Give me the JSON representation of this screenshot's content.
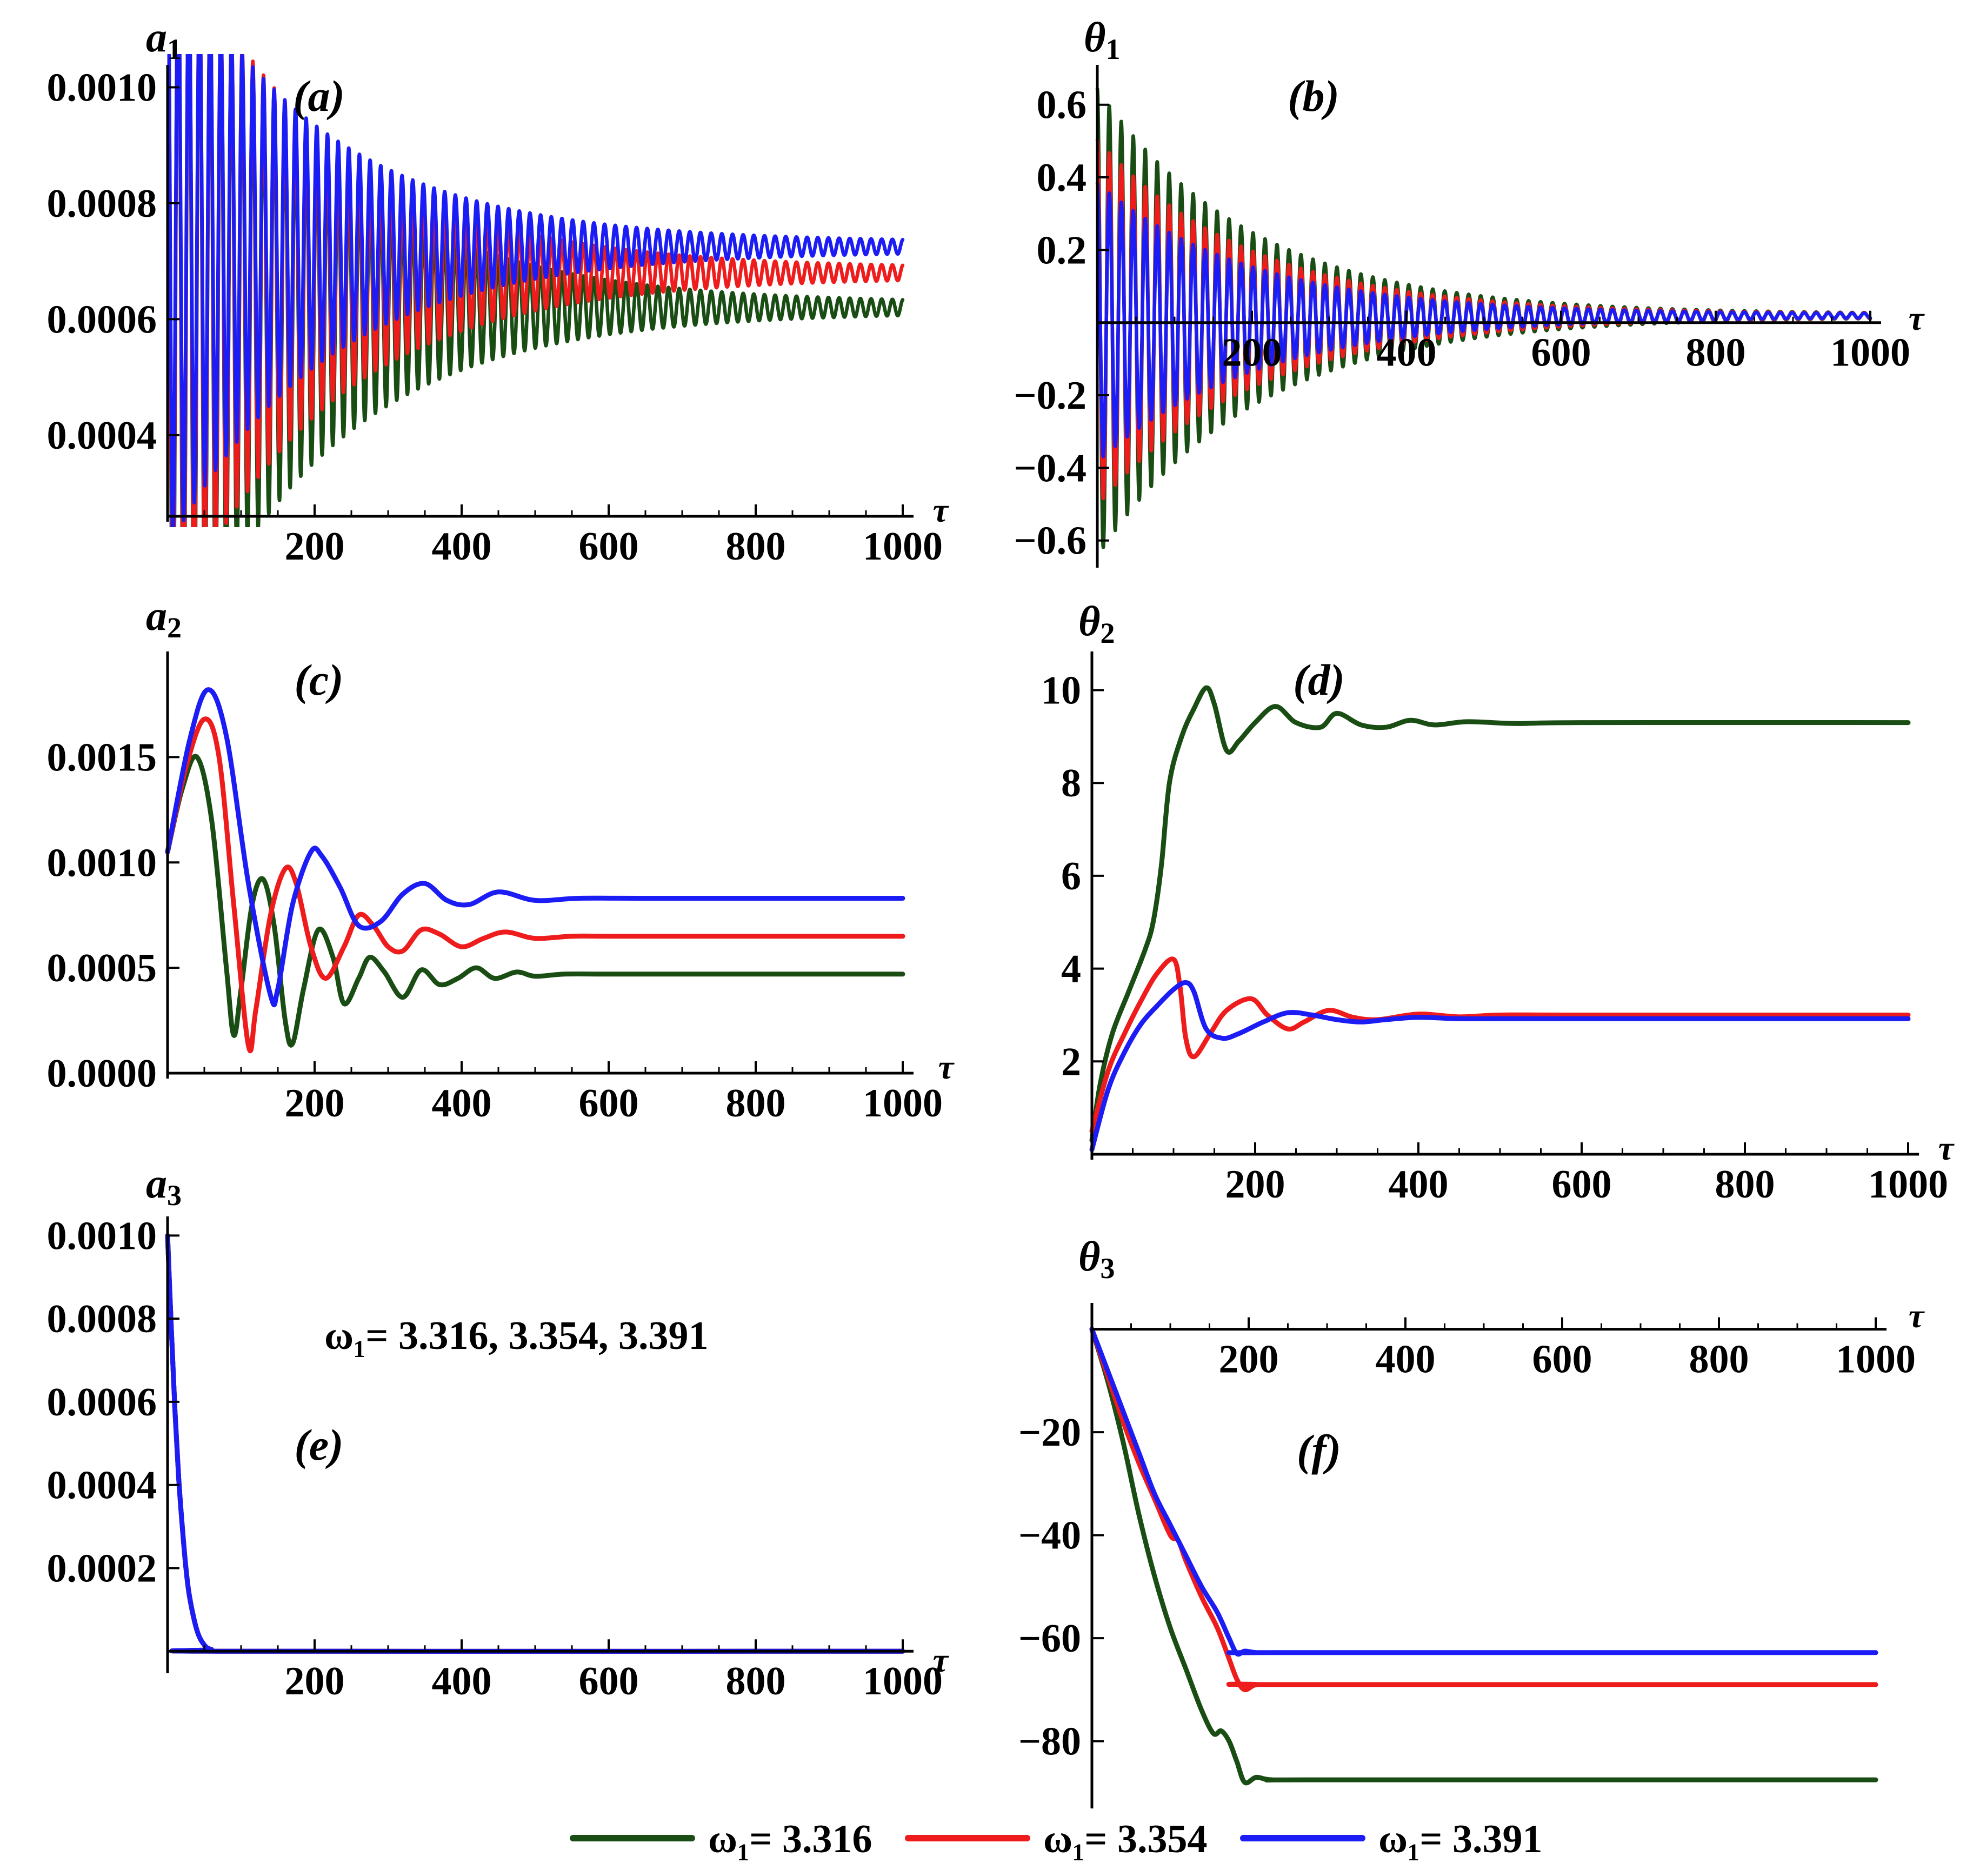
{
  "colors": {
    "green": "#1a4d14",
    "red": "#ee1c1c",
    "blue": "#1c1cf5",
    "axis": "#000000"
  },
  "chart_data": [
    {
      "id": "a",
      "type": "line",
      "panel_label": "(a)",
      "ylabel": "a",
      "ylabel_sub": "1",
      "xlabel": "τ",
      "xlim": [
        0,
        1000
      ],
      "ylim": [
        0.00026,
        0.00102
      ],
      "xticks": [
        200,
        400,
        600,
        800,
        1000
      ],
      "xtick_labels": [
        "200",
        "400",
        "600",
        "800",
        "1000"
      ],
      "yticks": [
        0.0004,
        0.0006,
        0.0008,
        0.001
      ],
      "ytick_labels": [
        "0.0004",
        "0.0006",
        "0.0008",
        "0.0010"
      ],
      "series": [
        {
          "name": "ω1 = 3.316",
          "color_key": "green",
          "kind": "osc",
          "period": 14.5,
          "tau": 210,
          "start": 0,
          "amp0": 0.00068,
          "mean0": 0.00063,
          "mean_end": 0.00062,
          "mean_tau": 200,
          "end_amp": 8e-06
        },
        {
          "name": "ω1 = 3.354",
          "color_key": "red",
          "kind": "osc",
          "period": 14.5,
          "tau": 210,
          "start": 0,
          "amp0": 0.00062,
          "mean0": 0.00068,
          "mean_end": 0.00068,
          "mean_tau": 200,
          "end_amp": 8e-06
        },
        {
          "name": "ω1 = 3.391",
          "color_key": "blue",
          "kind": "osc",
          "period": 14.5,
          "tau": 210,
          "start": 0,
          "amp0": 0.00052,
          "mean0": 0.00073,
          "mean_end": 0.000725,
          "mean_tau": 200,
          "end_amp": 8e-06
        }
      ]
    },
    {
      "id": "b",
      "type": "line",
      "panel_label": "(b)",
      "ylabel": "θ",
      "ylabel_sub": "1",
      "xlabel": "τ",
      "xlim": [
        0,
        1000
      ],
      "ylim": [
        -0.66,
        0.68
      ],
      "xticks": [
        200,
        400,
        600,
        800,
        1000
      ],
      "xtick_labels": [
        "200",
        "400",
        "600",
        "800",
        "1000"
      ],
      "yticks": [
        -0.6,
        -0.4,
        -0.2,
        0.2,
        0.4,
        0.6
      ],
      "ytick_labels": [
        "−0.6",
        "−0.4",
        "−0.2",
        "0.2",
        "0.4",
        "0.6"
      ],
      "series": [
        {
          "name": "ω1 = 3.316",
          "color_key": "green",
          "kind": "osc",
          "period": 15.5,
          "tau": 200,
          "start": 0,
          "amp0": 0.64,
          "mean0": 0.0,
          "mean_end": 0.02,
          "mean_tau": 300,
          "end_amp": 0.004
        },
        {
          "name": "ω1 = 3.354",
          "color_key": "red",
          "kind": "osc",
          "period": 15.5,
          "tau": 200,
          "start": 0,
          "amp0": 0.5,
          "mean0": 0.0,
          "mean_end": 0.02,
          "mean_tau": 300,
          "end_amp": 0.004
        },
        {
          "name": "ω1 = 3.391",
          "color_key": "blue",
          "kind": "osc",
          "period": 15.5,
          "tau": 200,
          "start": 0,
          "amp0": 0.38,
          "mean0": 0.0,
          "mean_end": 0.02,
          "mean_tau": 300,
          "end_amp": 0.004
        }
      ]
    },
    {
      "id": "c",
      "type": "line",
      "panel_label": "(c)",
      "ylabel": "a",
      "ylabel_sub": "2",
      "xlabel": "τ",
      "xlim": [
        0,
        1000
      ],
      "ylim": [
        0.0,
        0.00195
      ],
      "xticks": [
        200,
        400,
        600,
        800,
        1000
      ],
      "xtick_labels": [
        "200",
        "400",
        "600",
        "800",
        "1000"
      ],
      "yticks": [
        0.0,
        0.0005,
        0.001,
        0.0015
      ],
      "ytick_labels": [
        "0.0000",
        "0.0005",
        "0.0010",
        "0.0015"
      ],
      "series": [
        {
          "name": "ω1 = 3.316",
          "color_key": "green",
          "kind": "points",
          "x": [
            0,
            20,
            40,
            60,
            80,
            90,
            100,
            115,
            130,
            145,
            160,
            170,
            185,
            205,
            225,
            240,
            260,
            275,
            295,
            320,
            345,
            370,
            395,
            420,
            445,
            475,
            500,
            540,
            600,
            700,
            1000
          ],
          "y": [
            0.00105,
            0.00135,
            0.0015,
            0.0012,
            0.0005,
            0.00018,
            0.0004,
            0.0008,
            0.00092,
            0.0007,
            0.00025,
            0.00014,
            0.0004,
            0.00068,
            0.00055,
            0.00033,
            0.00045,
            0.00055,
            0.00048,
            0.00036,
            0.00049,
            0.00042,
            0.00045,
            0.0005,
            0.00045,
            0.00048,
            0.00046,
            0.00047,
            0.00047,
            0.00047,
            0.00047
          ]
        },
        {
          "name": "ω1 = 3.354",
          "color_key": "red",
          "kind": "points",
          "x": [
            0,
            25,
            50,
            70,
            90,
            110,
            120,
            140,
            160,
            175,
            195,
            215,
            240,
            260,
            280,
            300,
            320,
            345,
            370,
            400,
            430,
            460,
            500,
            550,
            600,
            700,
            1000
          ],
          "y": [
            0.00105,
            0.00145,
            0.00168,
            0.0015,
            0.0008,
            0.00013,
            0.0003,
            0.00075,
            0.00097,
            0.0009,
            0.0006,
            0.00045,
            0.0006,
            0.00075,
            0.0007,
            0.0006,
            0.00058,
            0.00068,
            0.00066,
            0.0006,
            0.00064,
            0.00067,
            0.00064,
            0.00065,
            0.00065,
            0.00065,
            0.00065
          ]
        },
        {
          "name": "ω1 = 3.391",
          "color_key": "blue",
          "kind": "points",
          "x": [
            0,
            30,
            55,
            80,
            110,
            140,
            150,
            170,
            195,
            210,
            235,
            260,
            290,
            320,
            350,
            380,
            410,
            450,
            500,
            560,
            650,
            1000
          ],
          "y": [
            0.00105,
            0.00158,
            0.00182,
            0.0016,
            0.0009,
            0.00037,
            0.0004,
            0.0008,
            0.00105,
            0.00103,
            0.00088,
            0.0007,
            0.00072,
            0.00085,
            0.0009,
            0.00082,
            0.0008,
            0.00086,
            0.00082,
            0.00083,
            0.00083,
            0.00083
          ]
        }
      ]
    },
    {
      "id": "d",
      "type": "line",
      "panel_label": "(d)",
      "ylabel": "θ",
      "ylabel_sub": "2",
      "xlabel": "τ",
      "xlim": [
        0,
        1000
      ],
      "ylim": [
        0,
        10.6
      ],
      "xticks": [
        200,
        400,
        600,
        800,
        1000
      ],
      "xtick_labels": [
        "200",
        "400",
        "600",
        "800",
        "1000"
      ],
      "yticks": [
        2,
        4,
        6,
        8,
        10
      ],
      "ytick_labels": [
        "2",
        "4",
        "6",
        "8",
        "10"
      ],
      "series": [
        {
          "name": "ω1 = 3.316",
          "color_key": "green",
          "kind": "points",
          "x": [
            0,
            10,
            25,
            45,
            65,
            75,
            85,
            95,
            110,
            125,
            140,
            150,
            165,
            180,
            200,
            225,
            250,
            280,
            300,
            330,
            360,
            390,
            420,
            460,
            520,
            600,
            1000
          ],
          "y": [
            0.3,
            1.5,
            2.6,
            3.5,
            4.4,
            5.0,
            6.2,
            8.0,
            9.0,
            9.6,
            10.05,
            9.7,
            8.7,
            8.9,
            9.3,
            9.65,
            9.3,
            9.2,
            9.5,
            9.25,
            9.2,
            9.35,
            9.25,
            9.32,
            9.28,
            9.3,
            9.3
          ]
        },
        {
          "name": "ω1 = 3.354",
          "color_key": "red",
          "kind": "points",
          "x": [
            0,
            20,
            40,
            60,
            80,
            100,
            108,
            115,
            125,
            145,
            165,
            195,
            215,
            240,
            260,
            290,
            320,
            350,
            400,
            450,
            500,
            600,
            1000
          ],
          "y": [
            0.5,
            1.8,
            2.6,
            3.3,
            3.9,
            4.2,
            3.6,
            2.5,
            2.1,
            2.6,
            3.1,
            3.35,
            3.0,
            2.7,
            2.85,
            3.1,
            2.95,
            2.9,
            3.02,
            2.96,
            3.0,
            3.0,
            3.0
          ]
        },
        {
          "name": "ω1 = 3.391",
          "color_key": "blue",
          "kind": "points",
          "x": [
            0,
            20,
            40,
            60,
            80,
            100,
            115,
            125,
            140,
            160,
            180,
            210,
            240,
            270,
            300,
            330,
            360,
            400,
            450,
            500,
            600,
            1000
          ],
          "y": [
            0.1,
            1.4,
            2.2,
            2.8,
            3.2,
            3.55,
            3.7,
            3.5,
            2.7,
            2.5,
            2.6,
            2.85,
            3.05,
            3.0,
            2.9,
            2.85,
            2.9,
            2.95,
            2.92,
            2.92,
            2.92,
            2.92
          ]
        }
      ]
    },
    {
      "id": "e",
      "type": "line",
      "panel_label": "(e)",
      "ylabel": "a",
      "ylabel_sub": "3",
      "xlabel": "τ",
      "xlim": [
        0,
        1000
      ],
      "ylim": [
        -4e-05,
        0.00102
      ],
      "xticks": [
        200,
        400,
        600,
        800,
        1000
      ],
      "xtick_labels": [
        "200",
        "400",
        "600",
        "800",
        "1000"
      ],
      "yticks": [
        0.0002,
        0.0004,
        0.0006,
        0.0008,
        0.001
      ],
      "ytick_labels": [
        "0.0002",
        "0.0004",
        "0.0006",
        "0.0008",
        "0.0010"
      ],
      "annotation": "ω₁= 3.316, 3.354, 3.391",
      "series": [
        {
          "name": "ω1 = 3.316",
          "color_key": "green",
          "kind": "points",
          "x": [
            0,
            5,
            10,
            15,
            20,
            25,
            30,
            40,
            50,
            60,
            80,
            1000
          ],
          "y": [
            0.001,
            0.00078,
            0.00058,
            0.00042,
            0.0003,
            0.0002,
            0.00013,
            5e-05,
            1.5e-05,
            4e-06,
            0.0,
            0.0
          ]
        },
        {
          "name": "ω1 = 3.354",
          "color_key": "red",
          "kind": "points",
          "x": [
            0,
            5,
            10,
            15,
            20,
            25,
            30,
            40,
            50,
            60,
            80,
            1000
          ],
          "y": [
            0.001,
            0.00078,
            0.00058,
            0.00042,
            0.0003,
            0.0002,
            0.00013,
            5e-05,
            1.5e-05,
            4e-06,
            0.0,
            0.0
          ]
        },
        {
          "name": "ω1 = 3.391",
          "color_key": "blue",
          "kind": "points",
          "x": [
            0,
            5,
            10,
            15,
            20,
            25,
            30,
            40,
            50,
            60,
            80,
            1000
          ],
          "y": [
            0.001,
            0.00078,
            0.00058,
            0.00042,
            0.0003,
            0.0002,
            0.00013,
            5e-05,
            1.5e-05,
            4e-06,
            0.0,
            0.0
          ]
        }
      ]
    },
    {
      "id": "f",
      "type": "line",
      "panel_label": "(f)",
      "ylabel": "θ",
      "ylabel_sub": "3",
      "xlabel": "τ",
      "xlim": [
        0,
        1000
      ],
      "ylim": [
        -92,
        3
      ],
      "xticks": [
        200,
        400,
        600,
        800,
        1000
      ],
      "xtick_labels": [
        "200",
        "400",
        "600",
        "800",
        "1000"
      ],
      "yticks": [
        -80,
        -60,
        -40,
        -20
      ],
      "ytick_labels": [
        "−80",
        "−60",
        "−40",
        "−20"
      ],
      "series": [
        {
          "name": "ω1 = 3.316",
          "color_key": "green",
          "kind": "points",
          "x": [
            0,
            20,
            40,
            60,
            80,
            100,
            120,
            140,
            155,
            165,
            175,
            185,
            195,
            210,
            230,
            300,
            1000
          ],
          "y": [
            0,
            -10,
            -22,
            -36,
            -48,
            -58,
            -66,
            -74,
            -78.5,
            -78,
            -80,
            -84,
            -88,
            -87,
            -87.5,
            -87.5,
            -87.5
          ]
        },
        {
          "name": "ω1 = 3.354",
          "color_key": "red",
          "kind": "points",
          "x": [
            0,
            20,
            40,
            60,
            80,
            100,
            110,
            120,
            140,
            160,
            175,
            185,
            195,
            210,
            240,
            1000
          ],
          "y": [
            0,
            -9,
            -18,
            -26,
            -33,
            -40,
            -41,
            -45,
            -52,
            -58,
            -64,
            -68,
            -70,
            -69,
            -69,
            -69
          ]
        },
        {
          "name": "ω1 = 3.391",
          "color_key": "blue",
          "kind": "points",
          "x": [
            0,
            20,
            40,
            60,
            80,
            100,
            120,
            140,
            160,
            175,
            185,
            195,
            210,
            240,
            1000
          ],
          "y": [
            0,
            -8,
            -16,
            -24,
            -32,
            -38,
            -44,
            -50,
            -55,
            -60,
            -63,
            -62.5,
            -62.8,
            -62.8,
            -62.8
          ]
        }
      ]
    }
  ],
  "legend": {
    "position": "bottom-center",
    "items": [
      {
        "label": "ω₁= 3.316",
        "color_key": "green"
      },
      {
        "label": "ω₁= 3.354",
        "color_key": "red"
      },
      {
        "label": "ω₁= 3.391",
        "color_key": "blue"
      }
    ]
  }
}
